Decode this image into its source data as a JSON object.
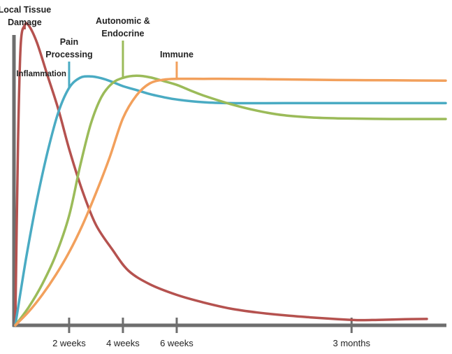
{
  "chart_data": {
    "type": "line",
    "title": "",
    "xlabel": "",
    "ylabel": "",
    "x_ticks": [
      {
        "label": "2 weeks",
        "x": 2
      },
      {
        "label": "4 weeks",
        "x": 4
      },
      {
        "label": "6 weeks",
        "x": 6
      },
      {
        "label": "3 months",
        "x": 12.5
      }
    ],
    "xlim": [
      -0.05,
      16
    ],
    "ylim": [
      0,
      10
    ],
    "grid": false,
    "legend": "none",
    "series": [
      {
        "name": "Local Tissue Damage",
        "color": "#b5524f",
        "points": [
          [
            0,
            0
          ],
          [
            0.1,
            6
          ],
          [
            0.2,
            9.2
          ],
          [
            0.35,
            9.86
          ],
          [
            0.5,
            9.85
          ],
          [
            0.8,
            9.3
          ],
          [
            1.2,
            8.2
          ],
          [
            1.6,
            7.1
          ],
          [
            2,
            5.8
          ],
          [
            2.5,
            4.4
          ],
          [
            3,
            3.3
          ],
          [
            3.6,
            2.5
          ],
          [
            4.2,
            1.8
          ],
          [
            5,
            1.35
          ],
          [
            6,
            1.0
          ],
          [
            7,
            0.75
          ],
          [
            8,
            0.55
          ],
          [
            9,
            0.42
          ],
          [
            10,
            0.33
          ],
          [
            11,
            0.26
          ],
          [
            12,
            0.2
          ],
          [
            12.8,
            0.17
          ],
          [
            13.5,
            0.18
          ],
          [
            14.5,
            0.2
          ],
          [
            15.3,
            0.21
          ]
        ]
      },
      {
        "name": "Pain Processing",
        "color": "#4aabc3",
        "points": [
          [
            0,
            0
          ],
          [
            0.4,
            2.2
          ],
          [
            0.8,
            4.1
          ],
          [
            1.2,
            5.7
          ],
          [
            1.6,
            7.0
          ],
          [
            2,
            7.8
          ],
          [
            2.4,
            8.13
          ],
          [
            2.8,
            8.18
          ],
          [
            3.2,
            8.12
          ],
          [
            3.6,
            8.0
          ],
          [
            4,
            7.86
          ],
          [
            4.5,
            7.73
          ],
          [
            5,
            7.6
          ],
          [
            5.5,
            7.5
          ],
          [
            6,
            7.42
          ],
          [
            7,
            7.33
          ],
          [
            8,
            7.3
          ],
          [
            10,
            7.3
          ],
          [
            12,
            7.3
          ],
          [
            14,
            7.3
          ],
          [
            16,
            7.3
          ]
        ]
      },
      {
        "name": "Autonomic & Endocrine",
        "color": "#9bbb59",
        "points": [
          [
            0,
            0
          ],
          [
            0.5,
            0.6
          ],
          [
            1,
            1.35
          ],
          [
            1.5,
            2.3
          ],
          [
            2,
            3.6
          ],
          [
            2.4,
            5.2
          ],
          [
            2.8,
            6.6
          ],
          [
            3.2,
            7.5
          ],
          [
            3.6,
            7.95
          ],
          [
            4,
            8.13
          ],
          [
            4.5,
            8.2
          ],
          [
            5,
            8.15
          ],
          [
            5.5,
            8.03
          ],
          [
            6,
            7.9
          ],
          [
            6.5,
            7.72
          ],
          [
            7,
            7.55
          ],
          [
            8,
            7.27
          ],
          [
            9,
            7.05
          ],
          [
            10,
            6.9
          ],
          [
            11,
            6.83
          ],
          [
            12,
            6.8
          ],
          [
            14,
            6.78
          ],
          [
            16,
            6.78
          ]
        ]
      },
      {
        "name": "Immune",
        "color": "#f2a05c",
        "points": [
          [
            0,
            0
          ],
          [
            0.5,
            0.45
          ],
          [
            1,
            1.0
          ],
          [
            1.5,
            1.65
          ],
          [
            2,
            2.4
          ],
          [
            2.5,
            3.3
          ],
          [
            3,
            4.35
          ],
          [
            3.5,
            5.5
          ],
          [
            4,
            6.8
          ],
          [
            4.5,
            7.55
          ],
          [
            5,
            7.95
          ],
          [
            5.5,
            8.07
          ],
          [
            6,
            8.1
          ],
          [
            7,
            8.1
          ],
          [
            8,
            8.1
          ],
          [
            10,
            8.08
          ],
          [
            12,
            8.06
          ],
          [
            14,
            8.05
          ],
          [
            16,
            8.04
          ]
        ]
      }
    ],
    "annotations": [
      {
        "text": [
          "Local Tissue",
          "Damage"
        ],
        "series": 0,
        "at_x": 0.35
      },
      {
        "text": [
          "Inflammation"
        ],
        "series": -1,
        "at_x": 2
      },
      {
        "text": [
          "Pain",
          "Processing"
        ],
        "series": 1,
        "at_x": 2
      },
      {
        "text": [
          "Autonomic &",
          "Endocrine"
        ],
        "series": 2,
        "at_x": 4
      },
      {
        "text": [
          "Immune"
        ],
        "series": 3,
        "at_x": 6
      }
    ]
  }
}
